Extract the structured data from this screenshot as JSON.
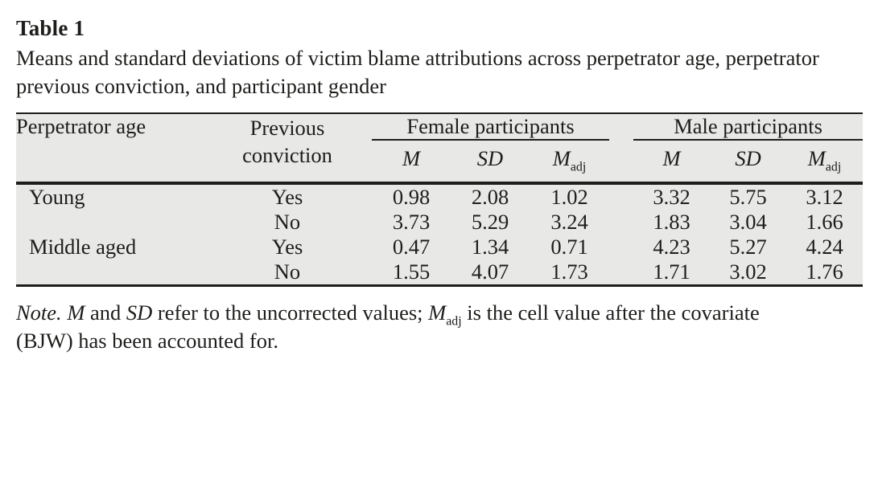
{
  "page": {
    "title": "Table 1",
    "caption": "Means and standard deviations of victim blame attributions across perpetrator age, perpetrator previous conviction, and participant gender"
  },
  "table": {
    "col_age_header": "Perpetrator age",
    "col_conviction_header": "Previous conviction",
    "group_female": "Female participants",
    "group_male": "Male participants",
    "sub_m": "M",
    "sub_sd": "SD",
    "sub_madj": [
      {
        "text": "M",
        "style": "italic"
      },
      {
        "text": "adj",
        "style": "sub"
      }
    ],
    "rows": [
      {
        "age": "Young",
        "conviction": "Yes",
        "f_m": "0.98",
        "f_sd": "2.08",
        "f_madj": "1.02",
        "m_m": "3.32",
        "m_sd": "5.75",
        "m_madj": "3.12"
      },
      {
        "age": "",
        "conviction": "No",
        "f_m": "3.73",
        "f_sd": "5.29",
        "f_madj": "3.24",
        "m_m": "1.83",
        "m_sd": "3.04",
        "m_madj": "1.66"
      },
      {
        "age": "Middle aged",
        "conviction": "Yes",
        "f_m": "0.47",
        "f_sd": "1.34",
        "f_madj": "0.71",
        "m_m": "4.23",
        "m_sd": "5.27",
        "m_madj": "4.24"
      },
      {
        "age": "",
        "conviction": "No",
        "f_m": "1.55",
        "f_sd": "4.07",
        "f_madj": "1.73",
        "m_m": "1.71",
        "m_sd": "3.02",
        "m_madj": "1.76"
      }
    ]
  },
  "note": {
    "parts": [
      {
        "text": "Note.",
        "style": "italic"
      },
      {
        "text": " ",
        "style": "normal"
      },
      {
        "text": "M",
        "style": "italic"
      },
      {
        "text": " and ",
        "style": "normal"
      },
      {
        "text": "SD",
        "style": "italic"
      },
      {
        "text": " refer to the uncorrected values; ",
        "style": "normal"
      },
      {
        "text": "M",
        "style": "italic"
      },
      {
        "text": "adj",
        "style": "sub"
      },
      {
        "text": " is the cell value after the covariate (BJW) has been accounted for.",
        "style": "normal"
      }
    ]
  },
  "colors": {
    "table_background": "#e8e8e7",
    "rule_color": "#1d1d1b",
    "text_color": "#1d1d1b",
    "page_background": "#ffffff"
  }
}
